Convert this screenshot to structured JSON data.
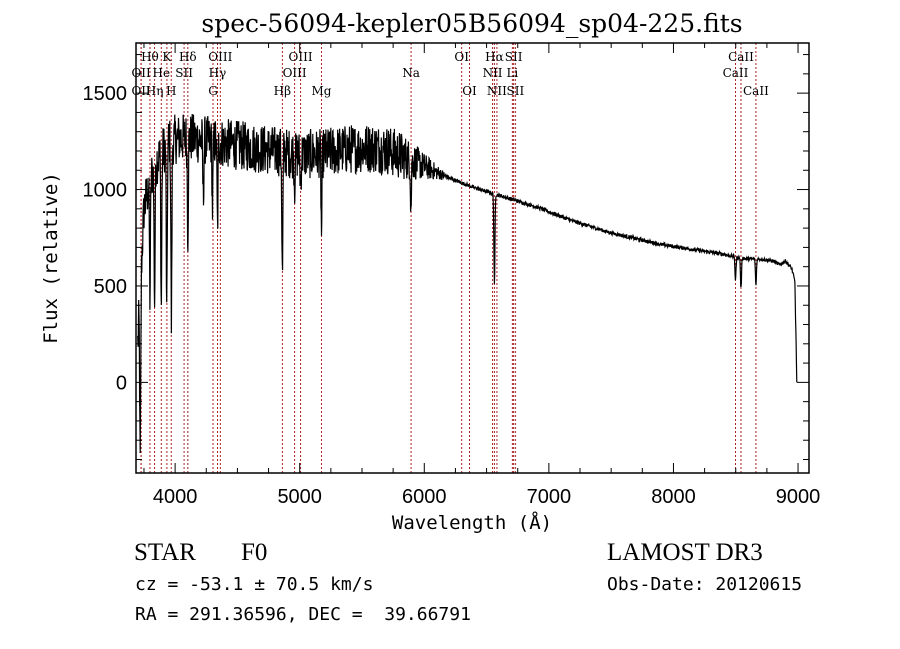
{
  "chart_data": {
    "type": "line",
    "title": "spec-56094-kepler05B56094_sp04-225.fits",
    "xlabel": "Wavelength (Å)",
    "ylabel": "Flux (relative)",
    "xlim": [
      3686,
      9088
    ],
    "ylim": [
      -470,
      1760
    ],
    "xticks": [
      4000,
      5000,
      6000,
      7000,
      8000,
      9000
    ],
    "xtick_labels": [
      "4000",
      "5000",
      "6000",
      "7000",
      "8000",
      "9000"
    ],
    "xminor_step": 250,
    "yticks": [
      0,
      500,
      1000,
      1500
    ],
    "ytick_labels": [
      "0",
      "500",
      "1000",
      "1500"
    ],
    "yminor_step": 100,
    "grid": false,
    "series": [
      {
        "name": "spectrum",
        "color": "#000000",
        "continuum": [
          [
            3700,
            200
          ],
          [
            3750,
            900
          ],
          [
            3800,
            1050
          ],
          [
            3850,
            1150
          ],
          [
            3900,
            1200
          ],
          [
            3950,
            1250
          ],
          [
            4000,
            1260
          ],
          [
            4100,
            1270
          ],
          [
            4200,
            1260
          ],
          [
            4300,
            1250
          ],
          [
            4400,
            1240
          ],
          [
            4500,
            1230
          ],
          [
            4600,
            1220
          ],
          [
            4700,
            1210
          ],
          [
            4800,
            1200
          ],
          [
            4900,
            1190
          ],
          [
            5000,
            1180
          ],
          [
            5100,
            1185
          ],
          [
            5200,
            1190
          ],
          [
            5300,
            1200
          ],
          [
            5400,
            1210
          ],
          [
            5500,
            1215
          ],
          [
            5600,
            1215
          ],
          [
            5700,
            1205
          ],
          [
            5800,
            1180
          ],
          [
            5900,
            1150
          ],
          [
            6000,
            1120
          ],
          [
            6100,
            1090
          ],
          [
            6200,
            1060
          ],
          [
            6300,
            1035
          ],
          [
            6400,
            1010
          ],
          [
            6500,
            990
          ],
          [
            6600,
            970
          ],
          [
            6700,
            950
          ],
          [
            6800,
            930
          ],
          [
            6900,
            910
          ],
          [
            7000,
            885
          ],
          [
            7100,
            860
          ],
          [
            7200,
            835
          ],
          [
            7300,
            815
          ],
          [
            7400,
            795
          ],
          [
            7500,
            775
          ],
          [
            7600,
            760
          ],
          [
            7700,
            745
          ],
          [
            7800,
            730
          ],
          [
            7900,
            715
          ],
          [
            8000,
            705
          ],
          [
            8100,
            695
          ],
          [
            8200,
            685
          ],
          [
            8300,
            675
          ],
          [
            8400,
            665
          ],
          [
            8500,
            650
          ],
          [
            8600,
            640
          ],
          [
            8700,
            640
          ],
          [
            8800,
            630
          ],
          [
            8850,
            610
          ],
          [
            8900,
            630
          ],
          [
            8950,
            590
          ],
          [
            8975,
            520
          ],
          [
            8990,
            0
          ]
        ],
        "noise_amplitude_blue": 130,
        "noise_amplitude_red": 10,
        "absorption": [
          {
            "wavelength": 3720,
            "depth": 900
          },
          {
            "wavelength": 3798,
            "depth": 600
          },
          {
            "wavelength": 3835,
            "depth": 700
          },
          {
            "wavelength": 3889,
            "depth": 800
          },
          {
            "wavelength": 3933,
            "depth": 900
          },
          {
            "wavelength": 3970,
            "depth": 950
          },
          {
            "wavelength": 4102,
            "depth": 500
          },
          {
            "wavelength": 4226,
            "depth": 300
          },
          {
            "wavelength": 4300,
            "depth": 350
          },
          {
            "wavelength": 4340,
            "depth": 450
          },
          {
            "wavelength": 4861,
            "depth": 650
          },
          {
            "wavelength": 4959,
            "depth": 150
          },
          {
            "wavelength": 5007,
            "depth": 150
          },
          {
            "wavelength": 5175,
            "depth": 420
          },
          {
            "wavelength": 5893,
            "depth": 250
          },
          {
            "wavelength": 6563,
            "depth": 480
          },
          {
            "wavelength": 8498,
            "depth": 120
          },
          {
            "wavelength": 8542,
            "depth": 160
          },
          {
            "wavelength": 8662,
            "depth": 140
          }
        ]
      }
    ],
    "line_markers": {
      "color": "#aa2222",
      "lines": [
        {
          "label": "OⅠⅠ",
          "wavelength": 3727,
          "row": 3
        },
        {
          "label": "Hθ",
          "wavelength": 3798,
          "row": 1
        },
        {
          "label": "OII",
          "wavelength": 3727,
          "row": 2
        },
        {
          "label": "Hη",
          "wavelength": 3835,
          "row": 3
        },
        {
          "label": "He",
          "wavelength": 3889,
          "row": 2
        },
        {
          "label": "K",
          "wavelength": 3934,
          "row": 1
        },
        {
          "label": "H",
          "wavelength": 3969,
          "row": 3
        },
        {
          "label": "SII",
          "wavelength": 4072,
          "row": 2
        },
        {
          "label": "Hδ",
          "wavelength": 4102,
          "row": 1
        },
        {
          "label": "G",
          "wavelength": 4304,
          "row": 3
        },
        {
          "label": "Hγ",
          "wavelength": 4340,
          "row": 2
        },
        {
          "label": "OIII",
          "wavelength": 4363,
          "row": 1
        },
        {
          "label": "Hβ",
          "wavelength": 4861,
          "row": 3
        },
        {
          "label": "OIII",
          "wavelength": 4959,
          "row": 2
        },
        {
          "label": "OIII",
          "wavelength": 5007,
          "row": 1
        },
        {
          "label": "Mg",
          "wavelength": 5175,
          "row": 3
        },
        {
          "label": "Na",
          "wavelength": 5894,
          "row": 2
        },
        {
          "label": "OI",
          "wavelength": 6300,
          "row": 1
        },
        {
          "label": "OI",
          "wavelength": 6363,
          "row": 3
        },
        {
          "label": "NII",
          "wavelength": 6548,
          "row": 2
        },
        {
          "label": "Hα",
          "wavelength": 6563,
          "row": 1
        },
        {
          "label": "NII",
          "wavelength": 6583,
          "row": 3
        },
        {
          "label": "Li",
          "wavelength": 6707,
          "row": 2
        },
        {
          "label": "SII",
          "wavelength": 6717,
          "row": 1
        },
        {
          "label": "SII",
          "wavelength": 6731,
          "row": 3
        },
        {
          "label": "CaII",
          "wavelength": 8498,
          "row": 2
        },
        {
          "label": "CaII",
          "wavelength": 8542,
          "row": 1
        },
        {
          "label": "CaII",
          "wavelength": 8662,
          "row": 3
        }
      ]
    }
  },
  "info": {
    "object_class": "STAR",
    "subclass": "F0",
    "survey": "LAMOST DR3",
    "redshift_text": "cz = -53.1 ± 70.5 km/s",
    "obs_date": "Obs-Date: 20120615",
    "coords_text": "RA = 291.36596, DEC =  39.66791"
  }
}
